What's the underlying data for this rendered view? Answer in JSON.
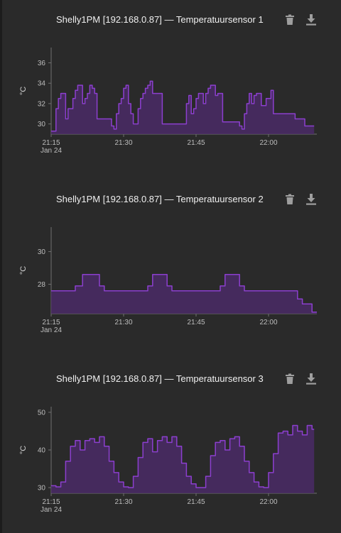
{
  "colors": {
    "background": "#2a2a2a",
    "series": "#8c3fcf",
    "fill": "#4a2a66",
    "axis": "#707070",
    "icon": "#9e9e9e"
  },
  "icons": {
    "delete": "trash-icon",
    "download": "download-icon"
  },
  "x_start_label": "Jan 24",
  "cards": [
    {
      "title": "Shelly1PM [192.168.0.87] — Temperatuursensor 1"
    },
    {
      "title": "Shelly1PM [192.168.0.87] — Temperatuursensor 2"
    },
    {
      "title": "Shelly1PM [192.168.0.87] — Temperatuursensor 3"
    }
  ],
  "chart_data": [
    {
      "type": "area",
      "ylabel": "°C",
      "xlim": [
        "21:15",
        "22:10"
      ],
      "ylim": [
        29,
        37.5
      ],
      "yticks": [
        30,
        32,
        34,
        36
      ],
      "xticks": [
        "21:15",
        "21:30",
        "21:45",
        "22:00"
      ],
      "x": [
        "21:15",
        "21:15.5",
        "21:16",
        "21:16.5",
        "21:17",
        "21:17.5",
        "21:18",
        "21:18.5",
        "21:19",
        "21:19.5",
        "21:20",
        "21:20.5",
        "21:21",
        "21:21.5",
        "21:22",
        "21:22.5",
        "21:23",
        "21:23.5",
        "21:24",
        "21:24.5",
        "21:25",
        "21:25.5",
        "21:26",
        "21:26.5",
        "21:27",
        "21:27.5",
        "21:28",
        "21:28.5",
        "21:29",
        "21:29.5",
        "21:30",
        "21:30.5",
        "21:31",
        "21:31.5",
        "21:32",
        "21:32.5",
        "21:33",
        "21:33.5",
        "21:34",
        "21:34.5",
        "21:35",
        "21:35.5",
        "21:36",
        "21:36.5",
        "21:37",
        "21:37.5",
        "21:38",
        "21:38.5",
        "21:39",
        "21:39.5",
        "21:40",
        "21:40.5",
        "21:41",
        "21:41.5",
        "21:42",
        "21:42.5",
        "21:43",
        "21:43.5",
        "21:44",
        "21:44.5",
        "21:45",
        "21:45.5",
        "21:46",
        "21:46.5",
        "21:47",
        "21:47.5",
        "21:48",
        "21:48.5",
        "21:49",
        "21:49.5",
        "21:50",
        "21:50.5",
        "21:51",
        "21:51.5",
        "21:52",
        "21:52.5",
        "21:53",
        "21:53.5",
        "21:54",
        "21:54.5",
        "21:55",
        "21:55.5",
        "21:56",
        "21:56.5",
        "21:57",
        "21:57.5",
        "21:58",
        "21:58.5",
        "21:59",
        "21:59.5",
        "22:00",
        "22:00.5",
        "22:01",
        "22:01.5",
        "22:02",
        "22:02.5",
        "22:03",
        "22:03.5",
        "22:04",
        "22:04.5",
        "22:05",
        "22:05.5",
        "22:06",
        "22:06.5",
        "22:07",
        "22:07.5",
        "22:08",
        "22:08.5",
        "22:09"
      ],
      "values": [
        29.3,
        29.3,
        31.5,
        32.5,
        33.0,
        33.0,
        30.5,
        31.5,
        31.5,
        32.5,
        33.3,
        33.8,
        33.8,
        32.0,
        32.5,
        33.0,
        33.8,
        33.5,
        33.0,
        30.5,
        30.5,
        30.5,
        30.5,
        30.5,
        30.5,
        29.8,
        29.5,
        31.0,
        32.0,
        32.5,
        33.5,
        33.8,
        32.0,
        31.0,
        30.0,
        30.0,
        31.5,
        32.5,
        33.0,
        33.5,
        33.8,
        34.2,
        33.0,
        33.0,
        33.0,
        33.0,
        30.0,
        30.0,
        30.0,
        30.0,
        30.0,
        30.0,
        30.0,
        30.0,
        30.0,
        30.0,
        32.0,
        32.8,
        31.0,
        31.5,
        32.5,
        33.0,
        33.0,
        32.0,
        33.0,
        33.5,
        33.8,
        33.8,
        32.8,
        33.0,
        33.0,
        30.2,
        30.2,
        30.2,
        30.2,
        30.2,
        30.2,
        30.2,
        29.8,
        29.5,
        31.0,
        32.0,
        33.0,
        32.0,
        32.8,
        33.0,
        33.0,
        31.8,
        31.8,
        32.5,
        32.5,
        33.3,
        31.0,
        31.0,
        31.0,
        31.0,
        31.0,
        31.0,
        31.0,
        31.0,
        31.0,
        30.5,
        30.5,
        30.5,
        30.5,
        29.8,
        29.8,
        29.8,
        29.8
      ],
      "grid": false
    },
    {
      "type": "area",
      "ylabel": "°C",
      "xlim": [
        "21:15",
        "22:10"
      ],
      "ylim": [
        26.2,
        31.5
      ],
      "yticks": [
        28,
        30
      ],
      "xticks": [
        "21:15",
        "21:30",
        "21:45",
        "22:00"
      ],
      "x": [
        "21:15",
        "21:19",
        "21:20",
        "21:21.5",
        "21:24",
        "21:25",
        "21:26",
        "21:34",
        "21:35",
        "21:36",
        "21:38",
        "21:39",
        "21:40",
        "21:49",
        "21:50",
        "21:51",
        "21:53",
        "21:54",
        "21:55",
        "22:05",
        "22:06",
        "22:07",
        "22:08",
        "22:09",
        "22:10"
      ],
      "values": [
        27.6,
        27.6,
        27.9,
        28.6,
        28.6,
        27.9,
        27.6,
        27.6,
        27.9,
        28.6,
        28.6,
        27.9,
        27.6,
        27.6,
        27.9,
        28.6,
        28.6,
        27.9,
        27.6,
        27.6,
        27.1,
        26.8,
        26.8,
        26.3,
        26.3
      ],
      "grid": false
    },
    {
      "type": "area",
      "ylabel": "°C",
      "xlim": [
        "21:15",
        "22:10"
      ],
      "ylim": [
        28.5,
        51.5
      ],
      "yticks": [
        30,
        40,
        50
      ],
      "xticks": [
        "21:15",
        "21:30",
        "21:45",
        "22:00"
      ],
      "x": [
        "21:15",
        "21:16",
        "21:17",
        "21:18",
        "21:19",
        "21:20",
        "21:21",
        "21:22",
        "21:23",
        "21:24",
        "21:25",
        "21:26",
        "21:27",
        "21:28",
        "21:29",
        "21:30",
        "21:31",
        "21:32",
        "21:33",
        "21:34",
        "21:35",
        "21:36",
        "21:37",
        "21:38",
        "21:39",
        "21:40",
        "21:41",
        "21:42",
        "21:43",
        "21:44",
        "21:45",
        "21:46",
        "21:47",
        "21:48",
        "21:49",
        "21:50",
        "21:51",
        "21:52",
        "21:53",
        "21:54",
        "21:55",
        "21:56",
        "21:57",
        "21:58",
        "21:59",
        "22:00",
        "22:01",
        "22:02",
        "22:03",
        "22:04",
        "22:05",
        "22:06",
        "22:07",
        "22:08",
        "22:09"
      ],
      "values": [
        30.5,
        30.2,
        31.5,
        37.0,
        41.0,
        42.5,
        40.0,
        42.5,
        43.0,
        42.0,
        43.5,
        41.0,
        37.0,
        34.0,
        31.5,
        30.2,
        30.0,
        33.0,
        38.0,
        42.0,
        43.0,
        39.5,
        42.5,
        43.5,
        42.0,
        43.5,
        41.0,
        36.5,
        33.0,
        31.0,
        30.0,
        30.0,
        33.0,
        38.5,
        42.0,
        42.5,
        40.0,
        43.0,
        43.5,
        41.0,
        37.0,
        34.0,
        31.5,
        30.2,
        30.0,
        34.0,
        39.0,
        44.5,
        45.0,
        44.0,
        46.5,
        45.0,
        44.0,
        46.5,
        45.5
      ]
    }
  ]
}
